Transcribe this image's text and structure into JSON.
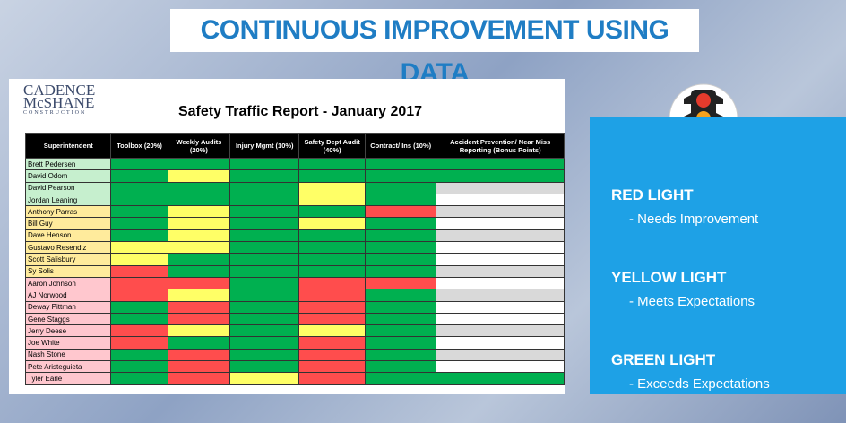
{
  "header": {
    "title": "CONTINUOUS IMPROVEMENT USING DATA"
  },
  "logo": {
    "line1": "CADENCE",
    "line2": "McSHANE",
    "line3": "CONSTRUCTION"
  },
  "report": {
    "title": "Safety Traffic Report - January 2017"
  },
  "table": {
    "columns": [
      "Superintendent",
      "Toolbox (20%)",
      "Weekly Audits (20%)",
      "Injury Mgmt (10%)",
      "Safety Dept Audit (40%)",
      "Contract/ Ins (10%)",
      "Accident Prevention/ Near Miss Reporting (Bonus Points)"
    ],
    "rows": [
      {
        "name": "Brett Pedersen",
        "name_color": "#c6efce",
        "cells": [
          "#00b050",
          "#00b050",
          "#00b050",
          "#00b050",
          "#00b050",
          "#00b050"
        ]
      },
      {
        "name": "David Odom",
        "name_color": "#c6efce",
        "cells": [
          "#00b050",
          "#ffff66",
          "#00b050",
          "#00b050",
          "#00b050",
          "#00b050"
        ]
      },
      {
        "name": "David Pearson",
        "name_color": "#c6efce",
        "cells": [
          "#00b050",
          "#00b050",
          "#00b050",
          "#ffff66",
          "#00b050",
          "#d9d9d9"
        ]
      },
      {
        "name": "Jordan Leaning",
        "name_color": "#c6efce",
        "cells": [
          "#00b050",
          "#00b050",
          "#00b050",
          "#ffff66",
          "#00b050",
          "#ffffff"
        ]
      },
      {
        "name": "Anthony Parras",
        "name_color": "#ffeb9c",
        "cells": [
          "#00b050",
          "#ffff66",
          "#00b050",
          "#00b050",
          "#ff4d4d",
          "#d9d9d9"
        ]
      },
      {
        "name": "Bill Guy",
        "name_color": "#ffeb9c",
        "cells": [
          "#00b050",
          "#ffff66",
          "#00b050",
          "#ffff66",
          "#00b050",
          "#ffffff"
        ]
      },
      {
        "name": "Dave Henson",
        "name_color": "#ffeb9c",
        "cells": [
          "#00b050",
          "#ffff66",
          "#00b050",
          "#00b050",
          "#00b050",
          "#d9d9d9"
        ]
      },
      {
        "name": "Gustavo Resendiz",
        "name_color": "#ffeb9c",
        "cells": [
          "#ffff66",
          "#ffff66",
          "#00b050",
          "#00b050",
          "#00b050",
          "#ffffff"
        ]
      },
      {
        "name": "Scott Salisbury",
        "name_color": "#ffeb9c",
        "cells": [
          "#ffff66",
          "#00b050",
          "#00b050",
          "#00b050",
          "#00b050",
          "#ffffff"
        ]
      },
      {
        "name": "Sy Solis",
        "name_color": "#ffeb9c",
        "cells": [
          "#ff4d4d",
          "#00b050",
          "#00b050",
          "#00b050",
          "#00b050",
          "#d9d9d9"
        ]
      },
      {
        "name": "Aaron Johnson",
        "name_color": "#ffc7ce",
        "cells": [
          "#ff4d4d",
          "#ff4d4d",
          "#00b050",
          "#ff4d4d",
          "#ff4d4d",
          "#ffffff"
        ]
      },
      {
        "name": "AJ Norwood",
        "name_color": "#ffc7ce",
        "cells": [
          "#ff4d4d",
          "#ffff66",
          "#00b050",
          "#ff4d4d",
          "#00b050",
          "#d9d9d9"
        ]
      },
      {
        "name": "Deway Pittman",
        "name_color": "#ffc7ce",
        "cells": [
          "#00b050",
          "#ff4d4d",
          "#00b050",
          "#ff4d4d",
          "#00b050",
          "#ffffff"
        ]
      },
      {
        "name": "Gene Staggs",
        "name_color": "#ffc7ce",
        "cells": [
          "#00b050",
          "#ff4d4d",
          "#00b050",
          "#ff4d4d",
          "#00b050",
          "#ffffff"
        ]
      },
      {
        "name": "Jerry Deese",
        "name_color": "#ffc7ce",
        "cells": [
          "#ff4d4d",
          "#ffff66",
          "#00b050",
          "#ffff66",
          "#00b050",
          "#d9d9d9"
        ]
      },
      {
        "name": "Joe White",
        "name_color": "#ffc7ce",
        "cells": [
          "#ff4d4d",
          "#00b050",
          "#00b050",
          "#ff4d4d",
          "#00b050",
          "#ffffff"
        ]
      },
      {
        "name": "Nash Stone",
        "name_color": "#ffc7ce",
        "cells": [
          "#00b050",
          "#ff4d4d",
          "#00b050",
          "#ff4d4d",
          "#00b050",
          "#d9d9d9"
        ]
      },
      {
        "name": "Pete Aristeguieta",
        "name_color": "#ffc7ce",
        "cells": [
          "#00b050",
          "#ff4d4d",
          "#00b050",
          "#ff4d4d",
          "#00b050",
          "#ffffff"
        ]
      },
      {
        "name": "Tyler Earle",
        "name_color": "#ffc7ce",
        "cells": [
          "#00b050",
          "#ff4d4d",
          "#ffff66",
          "#ff4d4d",
          "#00b050",
          "#00b050"
        ]
      }
    ]
  },
  "legend": [
    {
      "title": "RED LIGHT",
      "text": "- Needs Improvement"
    },
    {
      "title": "YELLOW LIGHT",
      "text": "- Meets Expectations"
    },
    {
      "title": "GREEN LIGHT",
      "text": "- Exceeds Expectations"
    }
  ]
}
